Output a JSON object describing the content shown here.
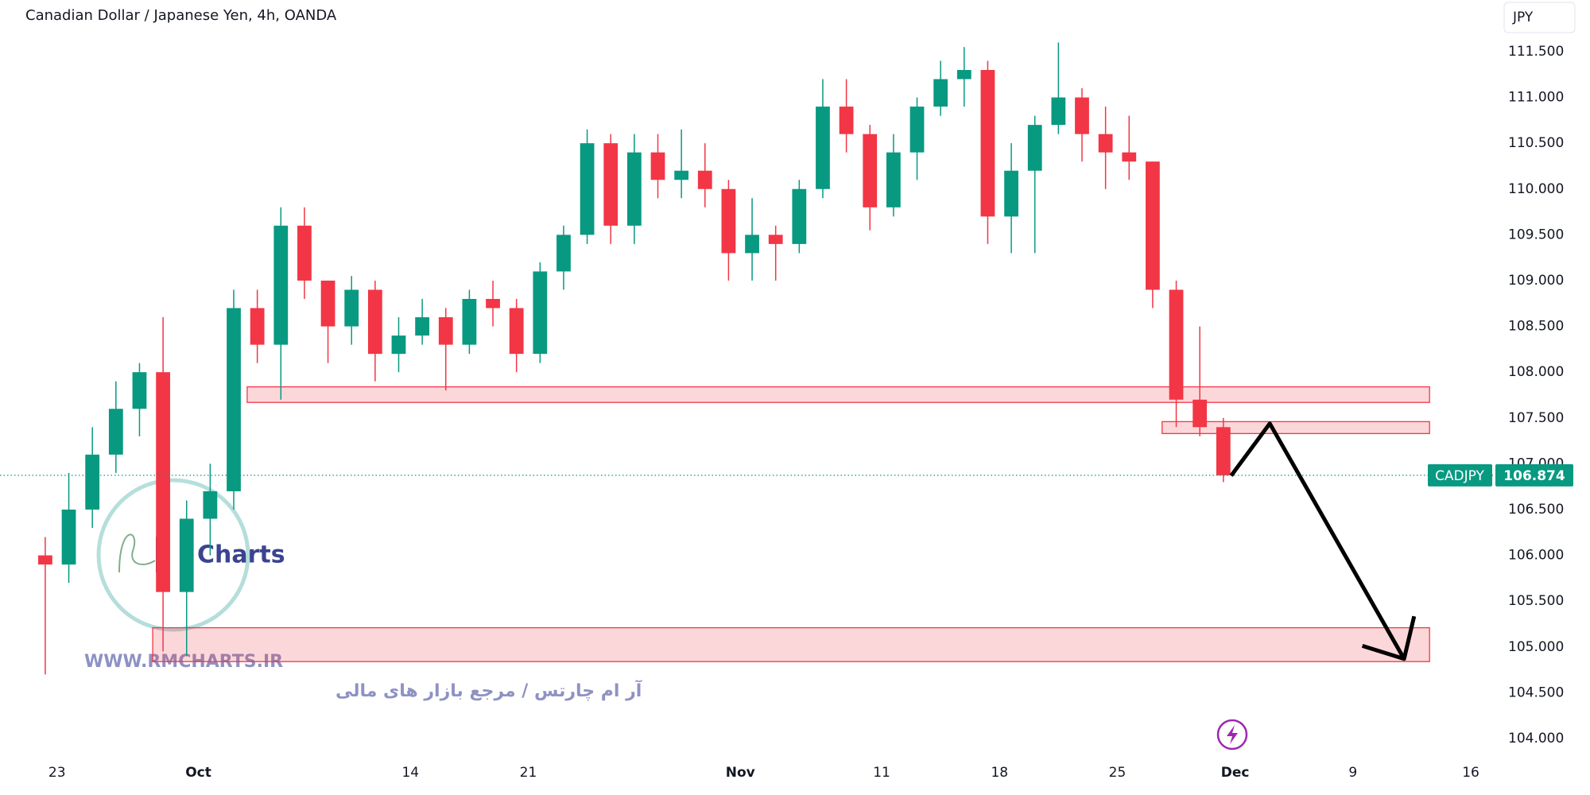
{
  "chart_data": {
    "type": "candlestick",
    "title": "Canadian Dollar / Japanese Yen, 4h, OANDA",
    "currency": "JPY",
    "symbol": "CADJPY",
    "last_price": 106.874,
    "up_color": "#089981",
    "down_color": "#f23645",
    "x": [
      -0.5,
      0.5,
      1.5,
      2.5,
      3.5,
      4.5,
      5.5,
      6.5,
      7.5,
      8.5,
      9.5,
      10.5,
      11.5,
      12.5,
      13.5,
      14.5,
      15.5,
      16.5,
      17.5,
      18.5,
      19.5,
      20.5,
      21.5,
      22.5,
      23.5,
      24.5,
      25.5,
      26.5,
      27.5,
      28.5,
      29.5,
      30.5,
      31.5,
      32.5,
      33.5,
      34.5,
      35.5,
      36.5,
      37.5,
      38.5,
      39.5,
      40.5,
      41.5,
      42.5,
      43.5,
      44.5,
      45.5,
      46.5,
      47.5,
      48.5,
      49.5
    ],
    "open": [
      106.0,
      105.9,
      106.5,
      107.1,
      107.6,
      108.0,
      105.6,
      106.4,
      106.7,
      108.7,
      108.3,
      109.6,
      109.0,
      108.5,
      108.9,
      108.2,
      108.4,
      108.6,
      108.3,
      108.8,
      108.7,
      108.2,
      109.1,
      109.5,
      110.5,
      109.6,
      110.4,
      110.1,
      110.2,
      110.0,
      109.3,
      109.5,
      109.4,
      110.0,
      110.9,
      110.6,
      109.8,
      110.4,
      110.9,
      111.2,
      111.3,
      109.7,
      110.2,
      110.7,
      111.0,
      110.6,
      110.4,
      110.3,
      108.9,
      107.7,
      107.4
    ],
    "high": [
      106.2,
      106.9,
      107.4,
      107.9,
      108.1,
      108.6,
      106.6,
      107.0,
      108.9,
      108.9,
      109.8,
      109.8,
      109.0,
      109.05,
      109.0,
      108.6,
      108.8,
      108.7,
      108.9,
      109.0,
      108.8,
      109.2,
      109.6,
      110.65,
      110.6,
      110.6,
      110.6,
      110.65,
      110.5,
      110.1,
      109.9,
      109.6,
      110.1,
      111.2,
      111.2,
      110.7,
      110.6,
      111.0,
      111.4,
      111.55,
      111.4,
      110.5,
      110.8,
      111.6,
      111.1,
      110.9,
      110.8,
      110.3,
      109.0,
      108.5,
      107.5
    ],
    "low": [
      104.7,
      105.7,
      106.3,
      106.9,
      107.3,
      104.95,
      104.9,
      106.0,
      106.5,
      108.1,
      107.7,
      108.8,
      108.1,
      108.3,
      107.9,
      108.0,
      108.3,
      107.8,
      108.2,
      108.5,
      108.0,
      108.1,
      108.9,
      109.4,
      109.4,
      109.4,
      109.9,
      109.9,
      109.8,
      109.0,
      109.0,
      109.0,
      109.3,
      109.9,
      110.4,
      109.55,
      109.7,
      110.1,
      110.8,
      110.9,
      109.4,
      109.3,
      109.3,
      110.6,
      110.3,
      110.0,
      110.1,
      108.7,
      107.4,
      107.3,
      106.8
    ],
    "close": [
      105.9,
      106.5,
      107.1,
      107.6,
      108.0,
      105.6,
      106.4,
      106.7,
      108.7,
      108.3,
      109.6,
      109.0,
      108.5,
      108.9,
      108.2,
      108.4,
      108.6,
      108.3,
      108.8,
      108.7,
      108.2,
      109.1,
      109.5,
      110.5,
      109.6,
      110.4,
      110.1,
      110.2,
      110.0,
      109.3,
      109.5,
      109.4,
      110.0,
      110.9,
      110.6,
      109.8,
      110.4,
      110.9,
      111.2,
      111.3,
      109.7,
      110.2,
      110.7,
      111.0,
      110.6,
      110.4,
      110.3,
      108.9,
      107.7,
      107.4,
      106.874
    ],
    "xlim": [
      -2.42,
      61.18
    ],
    "ylim": [
      103.774,
      112.064
    ],
    "xticks": [
      {
        "value": 0,
        "label": "23"
      },
      {
        "value": 6,
        "label": "Oct"
      },
      {
        "value": 15,
        "label": "14"
      },
      {
        "value": 20,
        "label": "21"
      },
      {
        "value": 29,
        "label": "Nov"
      },
      {
        "value": 35,
        "label": "11"
      },
      {
        "value": 40,
        "label": "18"
      },
      {
        "value": 45,
        "label": "25"
      },
      {
        "value": 50,
        "label": "Dec"
      },
      {
        "value": 55,
        "label": "9"
      },
      {
        "value": 60,
        "label": "16"
      }
    ],
    "yticks": [
      {
        "value": 104,
        "label": "104.000"
      },
      {
        "value": 104.5,
        "label": "104.500"
      },
      {
        "value": 105,
        "label": "105.000"
      },
      {
        "value": 105.5,
        "label": "105.500"
      },
      {
        "value": 106,
        "label": "106.000"
      },
      {
        "value": 106.5,
        "label": "106.500"
      },
      {
        "value": 107,
        "label": "107.000"
      },
      {
        "value": 107.5,
        "label": "107.500"
      },
      {
        "value": 108,
        "label": "108.000"
      },
      {
        "value": 108.5,
        "label": "108.500"
      },
      {
        "value": 109,
        "label": "109.000"
      },
      {
        "value": 109.5,
        "label": "109.500"
      },
      {
        "value": 110,
        "label": "110.000"
      },
      {
        "value": 110.5,
        "label": "110.500"
      },
      {
        "value": 111,
        "label": "111.000"
      },
      {
        "value": 111.5,
        "label": "111.500"
      }
    ],
    "zone_color": "#f23645",
    "zones": [
      {
        "x": [
          8.07,
          58.25
        ],
        "y": [
          107.67,
          107.84
        ]
      },
      {
        "x": [
          46.9,
          58.25
        ],
        "y": [
          107.33,
          107.46
        ]
      },
      {
        "x": [
          4.06,
          58.25
        ],
        "y": [
          104.84,
          105.21
        ]
      }
    ],
    "projection_color": "#000000",
    "projection": {
      "x": [
        49.83,
        51.47,
        57.17
      ],
      "y": [
        106.87,
        107.44,
        104.87
      ]
    }
  },
  "watermark": {
    "logo_text": "Charts",
    "website": "WWW.RMCHARTS.IR",
    "tagline": "آر ام چارتس / مرجع بازار های مالی"
  }
}
